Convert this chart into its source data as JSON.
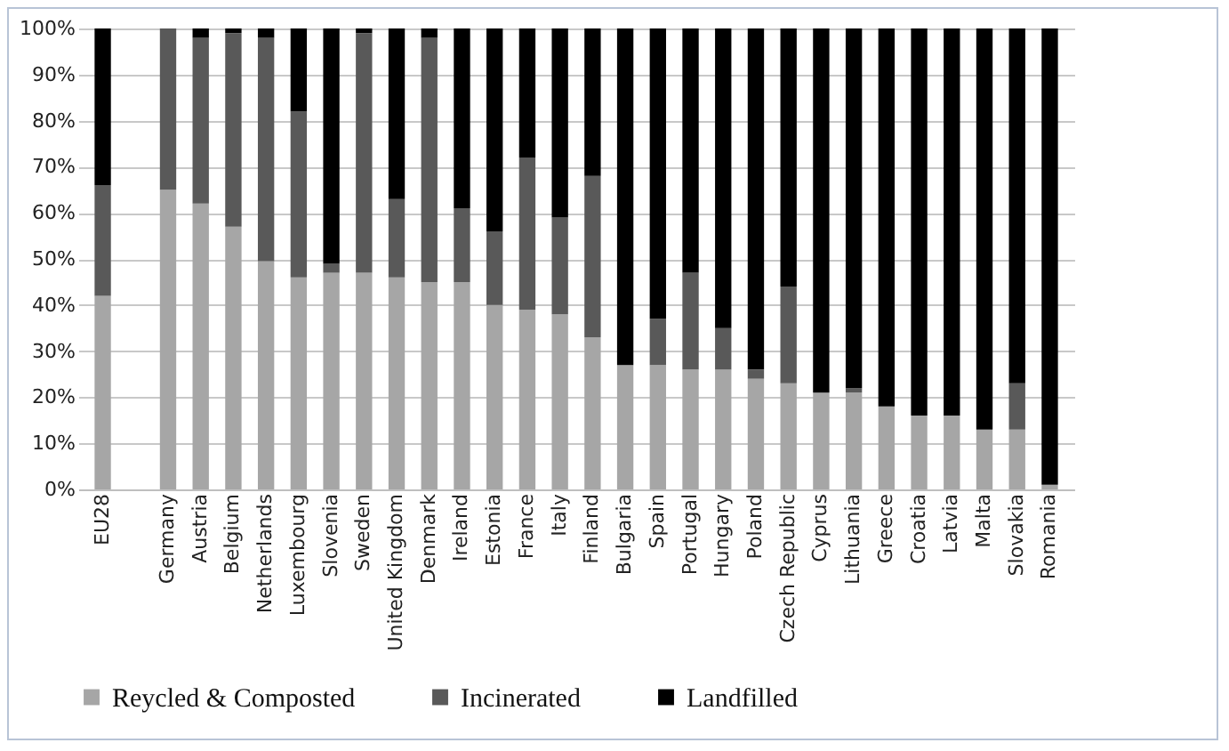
{
  "chart_data": {
    "type": "bar",
    "stacked": true,
    "categories": [
      "EU28",
      null,
      "Germany",
      "Austria",
      "Belgium",
      "Netherlands",
      "Luxembourg",
      "Slovenia",
      "Sweden",
      "United Kingdom",
      "Denmark",
      "Ireland",
      "Estonia",
      "France",
      "Italy",
      "Finland",
      "Bulgaria",
      "Spain",
      "Portugal",
      "Hungary",
      "Poland",
      "Czech Republic",
      "Cyprus",
      "Lithuania",
      "Greece",
      "Croatia",
      "Latvia",
      "Malta",
      "Slovakia",
      "Romania"
    ],
    "series": [
      {
        "name": "Reycled & Composted",
        "color": "#a6a6a6",
        "values": [
          42,
          null,
          65,
          62,
          57,
          49.5,
          46,
          47,
          47,
          46,
          45,
          45,
          40,
          39,
          38,
          33,
          27,
          27,
          26,
          26,
          24,
          23,
          21,
          21,
          18,
          16,
          16,
          13,
          13,
          1
        ]
      },
      {
        "name": "Incinerated",
        "color": "#595959",
        "values": [
          24,
          null,
          35,
          36,
          42,
          48.5,
          36,
          2,
          52,
          17,
          53,
          16,
          16,
          33,
          21,
          35,
          0,
          10,
          21,
          9,
          2,
          21,
          0,
          1,
          0,
          0,
          0,
          0,
          10,
          0
        ]
      },
      {
        "name": "Landfilled",
        "color": "#000000",
        "values": [
          34,
          null,
          0,
          2,
          1,
          2,
          18,
          51,
          1,
          37,
          2,
          39,
          44,
          28,
          41,
          32,
          73,
          63,
          53,
          65,
          74,
          56,
          79,
          78,
          82,
          84,
          84,
          87,
          77,
          99
        ]
      }
    ],
    "ylim": [
      0,
      100
    ],
    "yticks": [
      {
        "value": 0,
        "label": "0%"
      },
      {
        "value": 10,
        "label": "10%"
      },
      {
        "value": 20,
        "label": "20%"
      },
      {
        "value": 30,
        "label": "30%"
      },
      {
        "value": 40,
        "label": "40%"
      },
      {
        "value": 50,
        "label": "50%"
      },
      {
        "value": 60,
        "label": "60%"
      },
      {
        "value": 70,
        "label": "70%"
      },
      {
        "value": 80,
        "label": "80%"
      },
      {
        "value": 90,
        "label": "90%"
      },
      {
        "value": 100,
        "label": "100%"
      }
    ],
    "grid": "y",
    "legend": "bottom"
  }
}
